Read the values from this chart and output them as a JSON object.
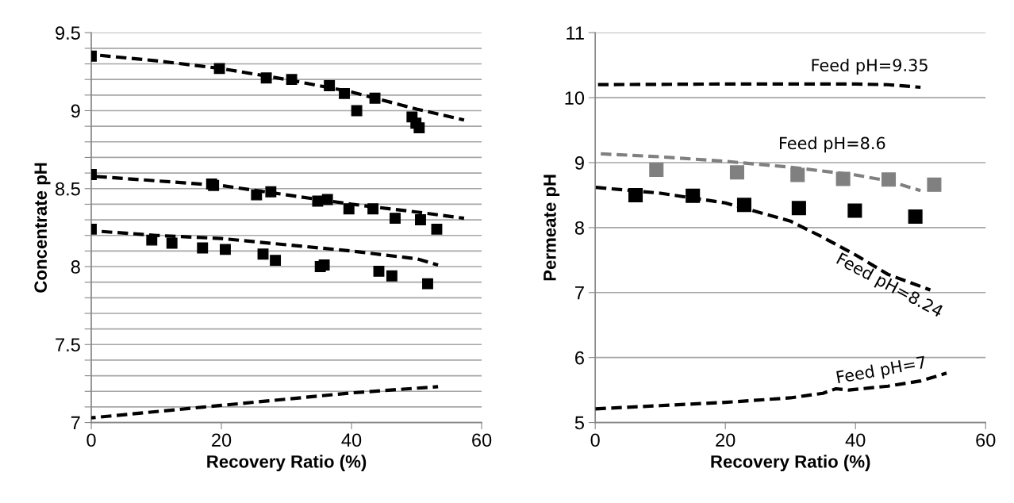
{
  "chart_data": [
    {
      "type": "scatter",
      "xlabel": "Recovery Ratio (%)",
      "ylabel": "Concentrate pH",
      "xlim": [
        0,
        60
      ],
      "xticks": [
        0,
        20,
        40,
        60
      ],
      "ylim": [
        7,
        9.5
      ],
      "yticks": [
        7,
        {
          "value": 7.1,
          "label": null
        },
        {
          "value": 7.2,
          "label": null
        },
        {
          "value": 7.3,
          "label": null
        },
        {
          "value": 7.4,
          "label": null
        },
        7.5,
        {
          "value": 7.6,
          "label": null
        },
        {
          "value": 7.7,
          "label": null
        },
        {
          "value": 7.8,
          "label": null
        },
        {
          "value": 7.9,
          "label": null
        },
        8,
        {
          "value": 8.1,
          "label": null
        },
        {
          "value": 8.2,
          "label": null
        },
        {
          "value": 8.3,
          "label": null
        },
        {
          "value": 8.4,
          "label": null
        },
        8.5,
        {
          "value": 8.6,
          "label": null
        },
        {
          "value": 8.7,
          "label": null
        },
        {
          "value": 8.8,
          "label": null
        },
        {
          "value": 8.9,
          "label": null
        },
        9,
        {
          "value": 9.1,
          "label": null
        },
        {
          "value": 9.2,
          "label": null
        },
        {
          "value": 9.3,
          "label": null
        },
        {
          "value": 9.4,
          "label": null
        },
        9.5
      ],
      "grid": "y",
      "legend": false,
      "series": [
        {
          "marker": "square",
          "color": "#000000",
          "x": [
            0,
            19.7,
            26.9,
            30.8,
            36.6,
            38.9,
            43.6,
            40.8,
            49.3,
            49.9,
            50.4
          ],
          "values": [
            9.35,
            9.27,
            9.21,
            9.2,
            9.16,
            9.11,
            9.08,
            9.0,
            8.96,
            8.92,
            8.89
          ]
        },
        {
          "marker": "square",
          "color": "#000000",
          "x": [
            0,
            18.5,
            18.8,
            25.4,
            27.6,
            34.8,
            36.3,
            39.6,
            43.3,
            46.7,
            50.6,
            53.1
          ],
          "values": [
            8.59,
            8.53,
            8.52,
            8.46,
            8.48,
            8.42,
            8.43,
            8.37,
            8.37,
            8.31,
            8.3,
            8.24
          ]
        },
        {
          "marker": "square",
          "color": "#000000",
          "x": [
            0,
            9.3,
            12.4,
            17.1,
            20.6,
            26.4,
            28.3,
            35.2,
            35.8,
            44.2,
            46.2,
            51.7
          ],
          "values": [
            8.24,
            8.17,
            8.15,
            8.12,
            8.11,
            8.08,
            8.04,
            8.0,
            8.01,
            7.97,
            7.94,
            7.89
          ]
        },
        {
          "type": "line",
          "line_style": "dashed",
          "marker": "none",
          "color": "#000000",
          "x": [
            0,
            10,
            20,
            30,
            40,
            50,
            57.3
          ],
          "values": [
            9.36,
            9.32,
            9.27,
            9.2,
            9.12,
            9.01,
            8.94
          ]
        },
        {
          "type": "line",
          "line_style": "dashed",
          "marker": "none",
          "color": "#000000",
          "x": [
            0,
            20,
            30,
            40,
            50,
            57.3
          ],
          "values": [
            8.58,
            8.52,
            8.46,
            8.4,
            8.35,
            8.31
          ]
        },
        {
          "type": "line",
          "line_style": "dashed",
          "marker": "none",
          "color": "#000000",
          "x": [
            0,
            10,
            20,
            30,
            40,
            50,
            53.3
          ],
          "values": [
            8.23,
            8.2,
            8.18,
            8.14,
            8.1,
            8.05,
            8.01
          ]
        },
        {
          "type": "line",
          "line_style": "dashed",
          "marker": "none",
          "color": "#000000",
          "x": [
            0,
            20,
            40,
            53.3
          ],
          "values": [
            7.03,
            7.11,
            7.19,
            7.23
          ]
        }
      ]
    },
    {
      "type": "scatter",
      "xlabel": "Recovery Ratio (%)",
      "ylabel": "Permeate pH",
      "xlim": [
        0,
        60
      ],
      "xticks": [
        0,
        20,
        40,
        60
      ],
      "ylim": [
        5,
        11
      ],
      "yticks": [
        5,
        6,
        7,
        8,
        9,
        10,
        11
      ],
      "grid": "y",
      "legend": false,
      "annotations": [
        "Feed pH=9.35",
        "Feed pH=8.6",
        "Feed pH=8.24",
        "Feed pH=7"
      ],
      "series": [
        {
          "type": "line",
          "line_style": "dashed",
          "marker": "none",
          "color": "#000000",
          "x": [
            0,
            20,
            40,
            45,
            50
          ],
          "values": [
            10.2,
            10.21,
            10.21,
            10.2,
            10.16
          ]
        },
        {
          "type": "line",
          "line_style": "dashed",
          "marker": "none",
          "color": "#808080",
          "x": [
            0,
            10,
            20,
            30,
            40,
            45,
            50
          ],
          "values": [
            9.14,
            9.09,
            9.02,
            8.93,
            8.81,
            8.72,
            8.57
          ]
        },
        {
          "marker": "square",
          "color": "#808080",
          "x": [
            9.4,
            21.8,
            31.1,
            38.1,
            45.1,
            52.1
          ],
          "values": [
            8.89,
            8.85,
            8.81,
            8.75,
            8.74,
            8.66
          ]
        },
        {
          "type": "line",
          "line_style": "dashed",
          "marker": "none",
          "color": "#000000",
          "x": [
            0,
            10,
            20,
            30,
            35,
            40,
            45,
            51.5
          ],
          "values": [
            8.62,
            8.53,
            8.38,
            8.1,
            7.85,
            7.58,
            7.28,
            7.04
          ]
        },
        {
          "marker": "square",
          "color": "#000000",
          "x": [
            6.2,
            15.0,
            22.9,
            31.3,
            39.9,
            49.2
          ],
          "values": [
            8.5,
            8.49,
            8.35,
            8.3,
            8.26,
            8.17
          ]
        },
        {
          "type": "line",
          "line_style": "dashed",
          "marker": "none",
          "color": "#000000",
          "x": [
            0,
            10,
            20,
            30,
            35,
            37,
            39,
            45,
            50,
            54
          ],
          "values": [
            5.21,
            5.26,
            5.31,
            5.38,
            5.45,
            5.52,
            5.5,
            5.56,
            5.64,
            5.76
          ]
        }
      ]
    }
  ]
}
